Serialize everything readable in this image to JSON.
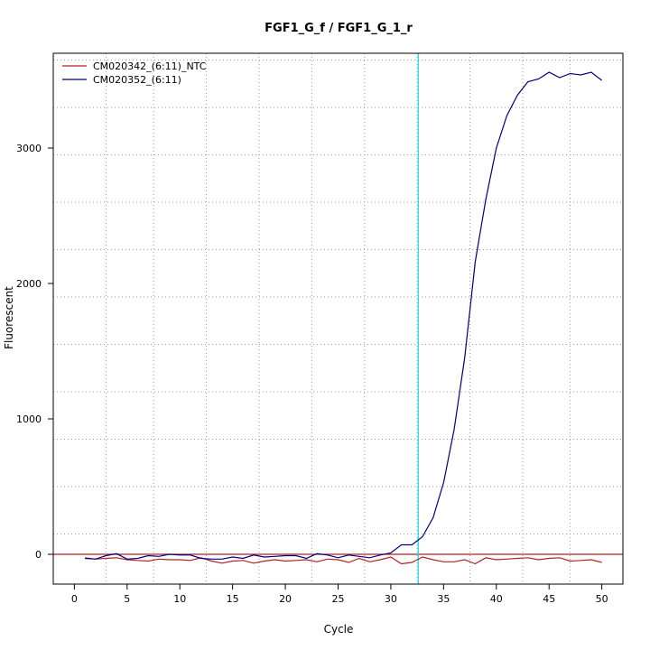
{
  "chart_data": {
    "type": "line",
    "title": "FGF1_G_f / FGF1_G_1_r",
    "xlabel": "Cycle",
    "ylabel": "Fluorescent",
    "xlim": [
      -2,
      52
    ],
    "ylim": [
      -220,
      3700
    ],
    "xticks": [
      "0",
      "5",
      "10",
      "15",
      "20",
      "25",
      "30",
      "35",
      "40",
      "45",
      "50"
    ],
    "yticks": [
      "0",
      "1000",
      "2000",
      "3000"
    ],
    "x_grid_minor": [
      3,
      7.5,
      12.5,
      17.5,
      22.5,
      27.5,
      32.5,
      37.5,
      42.5,
      47
    ],
    "y_grid_minor": [
      150,
      500,
      850,
      1200,
      1550,
      1900,
      2250,
      2600,
      2950,
      3300,
      3650
    ],
    "grid": true,
    "legend_position": "top-left",
    "threshold_x": 32.6,
    "threshold_color": "#00e5ee",
    "baseline_y": 0,
    "baseline_color": "#b22222",
    "series": [
      {
        "name": "CM020342_(6:11)_NTC",
        "color": "#b22222",
        "x": [
          1,
          2,
          3,
          4,
          5,
          6,
          7,
          8,
          9,
          10,
          11,
          12,
          13,
          14,
          15,
          16,
          17,
          18,
          19,
          20,
          21,
          22,
          23,
          24,
          25,
          26,
          27,
          28,
          29,
          30,
          31,
          32,
          33,
          34,
          35,
          36,
          37,
          38,
          39,
          40,
          41,
          42,
          43,
          44,
          45,
          46,
          47,
          48,
          49,
          50
        ],
        "y": [
          -25,
          -35,
          -30,
          -25,
          -40,
          -45,
          -50,
          -35,
          -40,
          -40,
          -45,
          -25,
          -50,
          -65,
          -50,
          -45,
          -65,
          -50,
          -40,
          -50,
          -45,
          -40,
          -55,
          -35,
          -40,
          -60,
          -30,
          -55,
          -40,
          -20,
          -70,
          -60,
          -20,
          -40,
          -55,
          -55,
          -40,
          -70,
          -25,
          -40,
          -35,
          -30,
          -25,
          -40,
          -30,
          -25,
          -50,
          -45,
          -40,
          -60
        ]
      },
      {
        "name": "CM020352_(6:11)",
        "color": "#000080",
        "x": [
          1,
          2,
          3,
          4,
          5,
          6,
          7,
          8,
          9,
          10,
          11,
          12,
          13,
          14,
          15,
          16,
          17,
          18,
          19,
          20,
          21,
          22,
          23,
          24,
          25,
          26,
          27,
          28,
          29,
          30,
          31,
          32,
          33,
          34,
          35,
          36,
          37,
          38,
          39,
          40,
          41,
          42,
          43,
          44,
          45,
          46,
          47,
          48,
          49,
          50
        ],
        "y": [
          -30,
          -35,
          -10,
          5,
          -35,
          -30,
          -10,
          -15,
          0,
          -5,
          -5,
          -30,
          -35,
          -35,
          -20,
          -30,
          -5,
          -20,
          -15,
          -10,
          -10,
          -30,
          5,
          -5,
          -25,
          -5,
          -15,
          -25,
          -5,
          10,
          70,
          70,
          130,
          270,
          530,
          920,
          1450,
          2160,
          2620,
          3000,
          3240,
          3390,
          3490,
          3510,
          3560,
          3520,
          3550,
          3540,
          3560,
          3500
        ]
      }
    ]
  }
}
